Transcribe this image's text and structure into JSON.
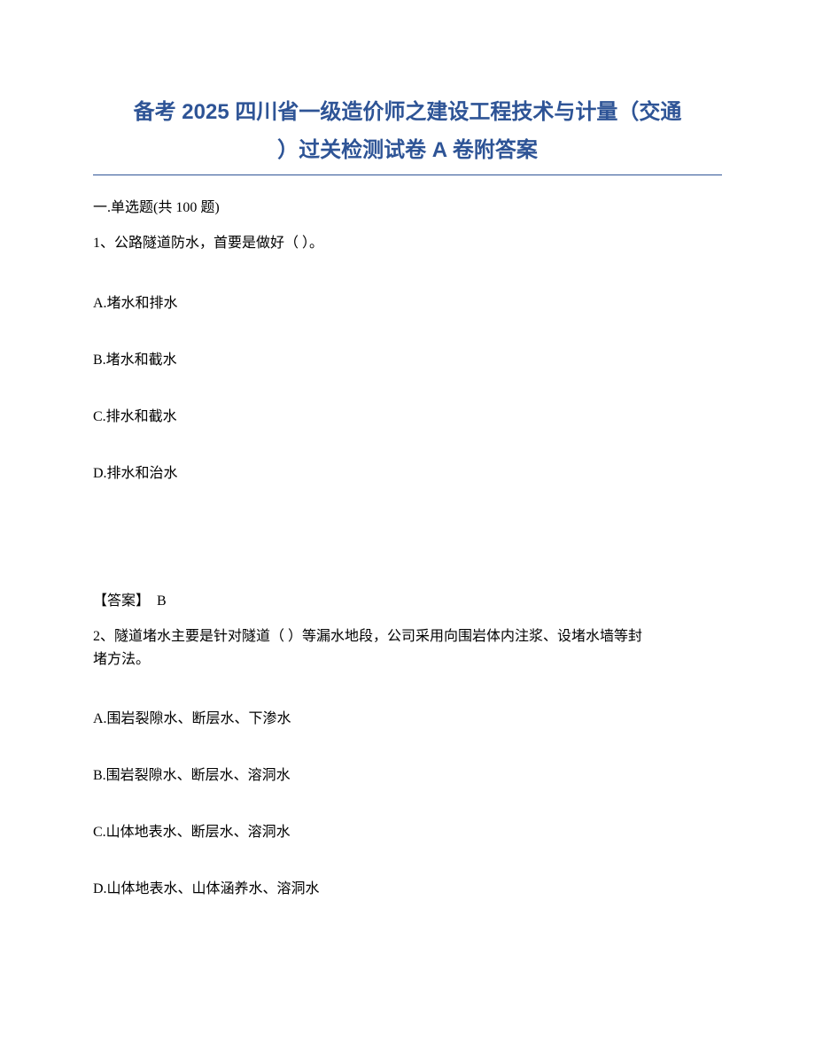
{
  "title": {
    "line1": "备考 2025 四川省一级造价师之建设工程技术与计量（交通",
    "line2": "）过关检测试卷 A 卷附答案",
    "color": "#2e5496",
    "font_family": "Microsoft YaHei",
    "font_weight": "bold",
    "font_size_pt": 18
  },
  "rule_color": "#2e5496",
  "section_header": "一.单选题(共 100 题)",
  "page_background": "#ffffff",
  "body_text_color": "#000000",
  "body_font_family": "SimSun",
  "body_font_size_pt": 12,
  "questions": [
    {
      "number": "1、",
      "stem": "公路隧道防水，首要是做好（  ）。",
      "options": [
        "A.堵水和排水",
        "B.堵水和截水",
        "C.排水和截水",
        "D.排水和治水"
      ],
      "answer_label": "【答案】",
      "answer_value": "B"
    },
    {
      "number": "2、",
      "stem_line1": "隧道堵水主要是针对隧道（ ）等漏水地段，公司采用向围岩体内注浆、设堵水墙等封",
      "stem_line2": "堵方法。",
      "options": [
        "A.围岩裂隙水、断层水、下渗水",
        "B.围岩裂隙水、断层水、溶洞水",
        "C.山体地表水、断层水、溶洞水",
        "D.山体地表水、山体涵养水、溶洞水"
      ]
    }
  ]
}
